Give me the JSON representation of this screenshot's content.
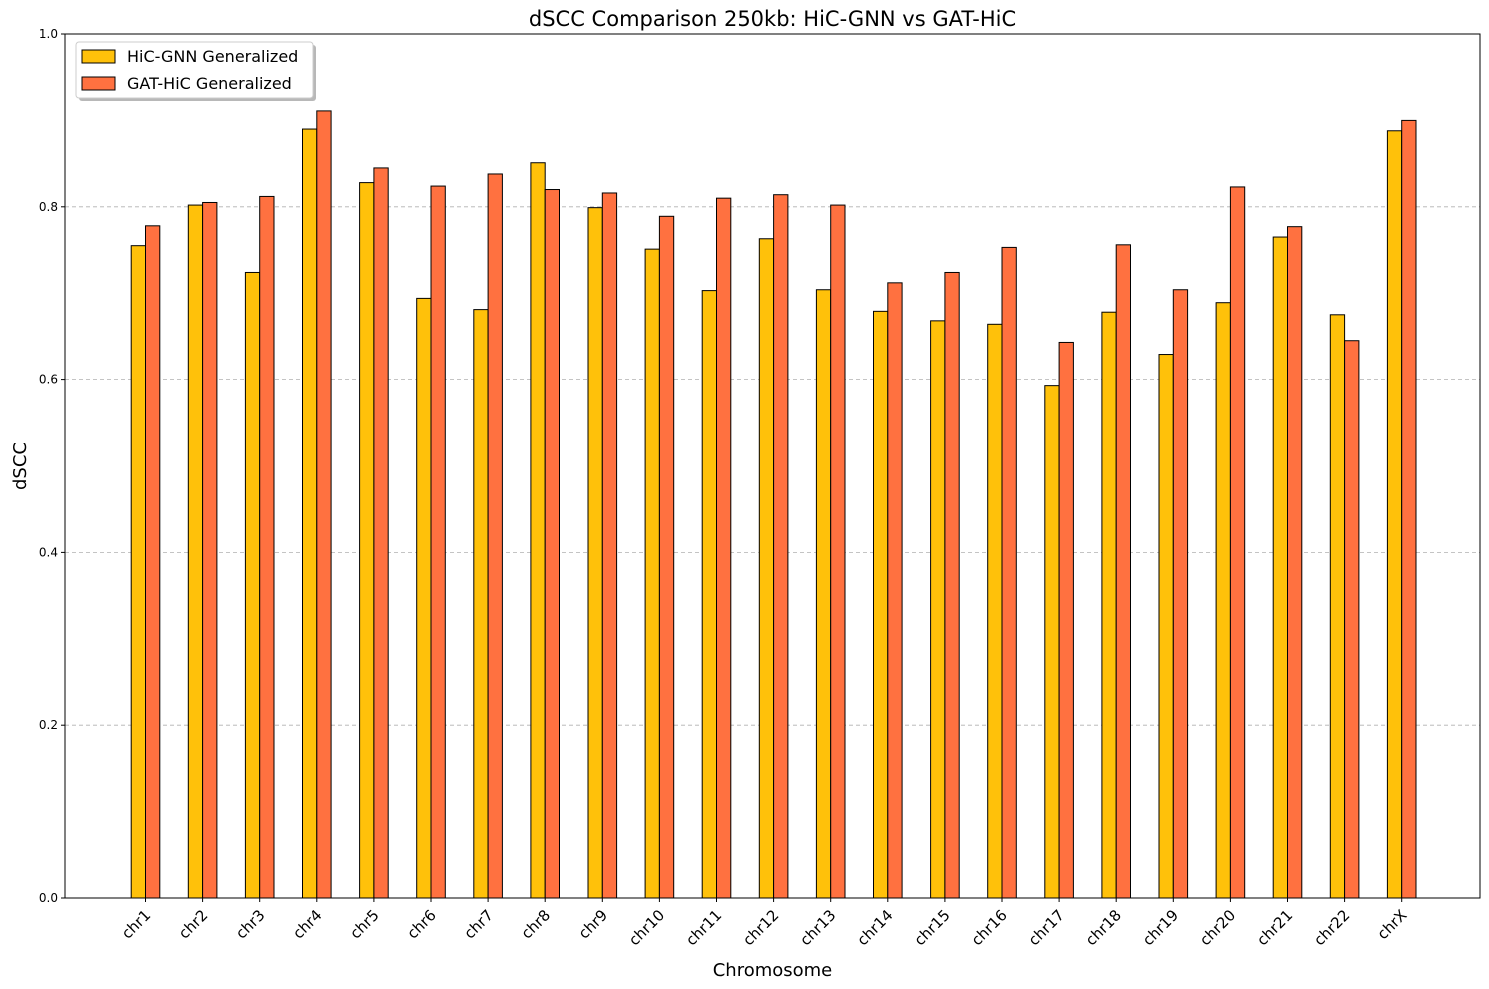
{
  "chart_data": {
    "type": "bar",
    "title": "dSCC Comparison 250kb: HiC-GNN vs GAT-HiC",
    "xlabel": "Chromosome",
    "ylabel": "dSCC",
    "ylim": [
      0,
      1.0
    ],
    "yticks": [
      "0.0",
      "0.2",
      "0.4",
      "0.6",
      "0.8",
      "1.0"
    ],
    "grid": "y-dashed",
    "legend_position": "top-left",
    "categories": [
      "chr1",
      "chr2",
      "chr3",
      "chr4",
      "chr5",
      "chr6",
      "chr7",
      "chr8",
      "chr9",
      "chr10",
      "chr11",
      "chr12",
      "chr13",
      "chr14",
      "chr15",
      "chr16",
      "chr17",
      "chr18",
      "chr19",
      "chr20",
      "chr21",
      "chr22",
      "chrX"
    ],
    "series": [
      {
        "name": "HiC-GNN Generalized",
        "color": "#FFC10A",
        "values": [
          0.755,
          0.802,
          0.724,
          0.89,
          0.828,
          0.694,
          0.681,
          0.851,
          0.799,
          0.751,
          0.703,
          0.763,
          0.704,
          0.679,
          0.668,
          0.664,
          0.593,
          0.678,
          0.629,
          0.689,
          0.765,
          0.675,
          0.888
        ]
      },
      {
        "name": "GAT-HiC Generalized",
        "color": "#FF7140",
        "values": [
          0.778,
          0.805,
          0.812,
          0.911,
          0.845,
          0.824,
          0.838,
          0.82,
          0.816,
          0.789,
          0.81,
          0.814,
          0.802,
          0.712,
          0.724,
          0.753,
          0.643,
          0.756,
          0.704,
          0.823,
          0.777,
          0.645,
          0.9
        ]
      }
    ]
  }
}
